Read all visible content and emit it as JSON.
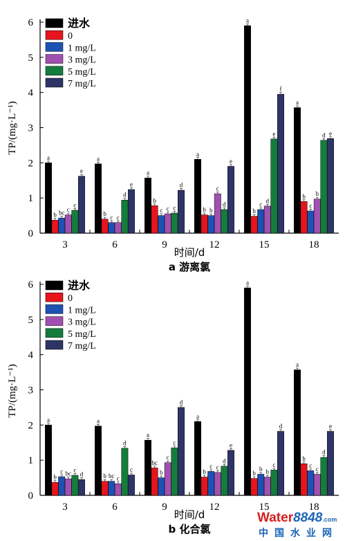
{
  "chart_data": [
    {
      "type": "bar",
      "title": "a 游离氯",
      "xlabel": "时间/d",
      "ylabel": "TP/(mg·L⁻¹)",
      "ylim": [
        0,
        6
      ],
      "yticks": [
        "0",
        "1",
        "2",
        "3",
        "4",
        "5",
        "6"
      ],
      "legend_position": "top-left",
      "categories": [
        "3",
        "6",
        "9",
        "12",
        "15",
        "18"
      ],
      "series": [
        {
          "name": "进水",
          "color": "#000000",
          "values": [
            2.0,
            1.97,
            1.57,
            2.1,
            5.9,
            3.57
          ],
          "labels": [
            "a",
            "a",
            "a",
            "a",
            "a",
            "a"
          ]
        },
        {
          "name": "0",
          "color": "#e8141c",
          "values": [
            0.37,
            0.4,
            0.78,
            0.52,
            0.48,
            0.9
          ],
          "labels": [
            "b",
            "b",
            "b",
            "b",
            "b",
            "b"
          ]
        },
        {
          "name": "1 mg/L",
          "color": "#1c52b4",
          "values": [
            0.43,
            0.3,
            0.5,
            0.5,
            0.67,
            0.63
          ],
          "labels": [
            "bc",
            "c",
            "c",
            "b",
            "c",
            "c"
          ]
        },
        {
          "name": "3 mg/L",
          "color": "#a050b0",
          "values": [
            0.52,
            0.3,
            0.55,
            1.12,
            0.77,
            0.97
          ],
          "labels": [
            "c",
            "c",
            "c",
            "c",
            "d",
            "b"
          ]
        },
        {
          "name": "5 mg/L",
          "color": "#147d3c",
          "values": [
            0.65,
            0.94,
            0.57,
            0.67,
            2.68,
            2.64
          ],
          "labels": [
            "c",
            "d",
            "c",
            "d",
            "e",
            "d"
          ]
        },
        {
          "name": "7 mg/L",
          "color": "#2e3566",
          "values": [
            1.62,
            1.24,
            1.22,
            1.9,
            3.95,
            2.69
          ],
          "labels": [
            "e",
            "e",
            "d",
            "e",
            "f",
            "e"
          ]
        }
      ]
    },
    {
      "type": "bar",
      "title": "b 化合氯",
      "xlabel": "时间/d",
      "ylabel": "TP/(mg·L⁻¹)",
      "ylim": [
        0,
        6
      ],
      "yticks": [
        "0",
        "1",
        "2",
        "3",
        "4",
        "5",
        "6"
      ],
      "legend_position": "top-left",
      "categories": [
        "3",
        "6",
        "9",
        "12",
        "15",
        "18"
      ],
      "series": [
        {
          "name": "进水",
          "color": "#000000",
          "values": [
            2.0,
            1.97,
            1.57,
            2.1,
            5.9,
            3.57
          ],
          "labels": [
            "a",
            "a",
            "a",
            "a",
            "a",
            "a"
          ]
        },
        {
          "name": "0",
          "color": "#e8141c",
          "values": [
            0.37,
            0.4,
            0.78,
            0.52,
            0.48,
            0.9
          ],
          "labels": [
            "b",
            "b",
            "bc",
            "b",
            "b",
            "b"
          ]
        },
        {
          "name": "1 mg/L",
          "color": "#1c52b4",
          "values": [
            0.53,
            0.4,
            0.5,
            0.68,
            0.6,
            0.7
          ],
          "labels": [
            "c",
            "bc",
            "b",
            "c",
            "b",
            "c"
          ]
        },
        {
          "name": "3 mg/L",
          "color": "#a050b0",
          "values": [
            0.47,
            0.33,
            0.93,
            0.65,
            0.52,
            0.6
          ],
          "labels": [
            "bc",
            "c",
            "c",
            "c",
            "b",
            "c"
          ]
        },
        {
          "name": "5 mg/L",
          "color": "#147d3c",
          "values": [
            0.57,
            1.34,
            1.35,
            0.83,
            0.72,
            1.08
          ],
          "labels": [
            "c",
            "d",
            "c",
            "d",
            "c",
            "d"
          ]
        },
        {
          "name": "7 mg/L",
          "color": "#2e3566",
          "values": [
            0.45,
            0.58,
            2.5,
            1.28,
            1.82,
            1.82
          ],
          "labels": [
            "d",
            "c",
            "d",
            "e",
            "d",
            "e"
          ]
        }
      ]
    }
  ],
  "watermark": {
    "brand_a": "Water",
    "brand_b": "8848",
    "suffix": ".com",
    "line2": "中国水业网"
  }
}
